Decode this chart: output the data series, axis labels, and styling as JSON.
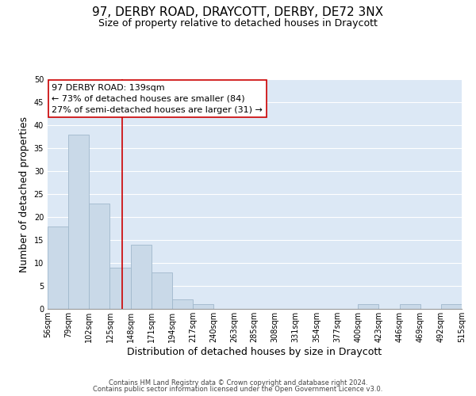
{
  "title": "97, DERBY ROAD, DRAYCOTT, DERBY, DE72 3NX",
  "subtitle": "Size of property relative to detached houses in Draycott",
  "xlabel": "Distribution of detached houses by size in Draycott",
  "ylabel": "Number of detached properties",
  "bin_edges": [
    56,
    79,
    102,
    125,
    148,
    171,
    194,
    217,
    240,
    263,
    285,
    308,
    331,
    354,
    377,
    400,
    423,
    446,
    469,
    492,
    515
  ],
  "bar_heights": [
    18,
    38,
    23,
    9,
    14,
    8,
    2,
    1,
    0,
    0,
    0,
    0,
    0,
    0,
    0,
    1,
    0,
    1,
    0,
    1
  ],
  "bar_color": "#c9d9e8",
  "bar_edgecolor": "#a0b8cc",
  "vline_x": 139,
  "vline_color": "#cc0000",
  "ylim": [
    0,
    50
  ],
  "yticks": [
    0,
    5,
    10,
    15,
    20,
    25,
    30,
    35,
    40,
    45,
    50
  ],
  "ann_line1": "97 DERBY ROAD: 139sqm",
  "ann_line2": "← 73% of detached houses are smaller (84)",
  "ann_line3": "27% of semi-detached houses are larger (31) →",
  "footer_line1": "Contains HM Land Registry data © Crown copyright and database right 2024.",
  "footer_line2": "Contains public sector information licensed under the Open Government Licence v3.0.",
  "background_color": "#dce8f5",
  "grid_color": "#ffffff",
  "title_fontsize": 11,
  "subtitle_fontsize": 9,
  "axis_label_fontsize": 9,
  "tick_label_fontsize": 7,
  "footer_fontsize": 6,
  "ann_fontsize": 8
}
